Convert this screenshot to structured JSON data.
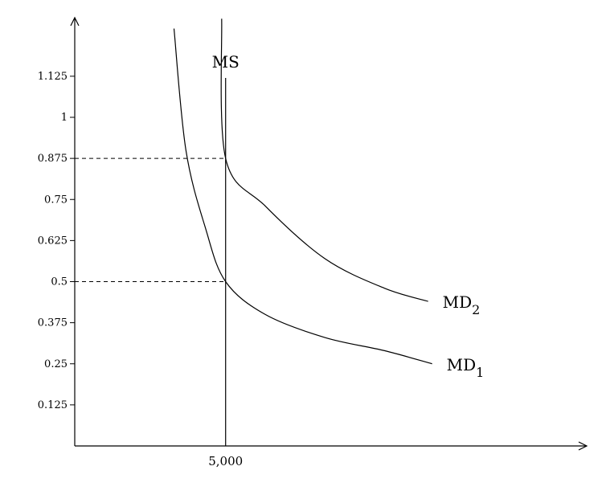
{
  "chart_data": {
    "type": "line",
    "title": "",
    "xlabel": "",
    "ylabel": "",
    "y_ticks": [
      {
        "value": 0.125,
        "label": "0.125"
      },
      {
        "value": 0.25,
        "label": "0.25"
      },
      {
        "value": 0.375,
        "label": "0.375"
      },
      {
        "value": 0.5,
        "label": "0.5"
      },
      {
        "value": 0.625,
        "label": "0.625"
      },
      {
        "value": 0.75,
        "label": "0.75"
      },
      {
        "value": 0.875,
        "label": "0.875"
      },
      {
        "value": 1,
        "label": "1"
      },
      {
        "value": 1.125,
        "label": "1.125"
      }
    ],
    "x_ticks": [
      {
        "value": 5000,
        "label": "5,000"
      }
    ],
    "ylim": [
      0,
      1.3
    ],
    "xlim": [
      1200,
      12300
    ],
    "grid": false,
    "money_supply": {
      "name": "MS",
      "x": 5000
    },
    "series": [
      {
        "name": "MD",
        "subscript": "1",
        "points": [
          [
            3700,
            1.27
          ],
          [
            4000,
            0.9
          ],
          [
            4500,
            0.66
          ],
          [
            5000,
            0.5
          ],
          [
            6000,
            0.4
          ],
          [
            7500,
            0.33
          ],
          [
            9000,
            0.29
          ],
          [
            10200,
            0.25
          ]
        ]
      },
      {
        "name": "MD",
        "subscript": "2",
        "points": [
          [
            4900,
            1.3
          ],
          [
            5000,
            0.875
          ],
          [
            6000,
            0.73
          ],
          [
            7500,
            0.57
          ],
          [
            9000,
            0.48
          ],
          [
            10100,
            0.44
          ]
        ]
      }
    ],
    "guides": [
      {
        "y": 0.875,
        "x": 5000
      },
      {
        "y": 0.5,
        "x": 5000
      }
    ]
  }
}
